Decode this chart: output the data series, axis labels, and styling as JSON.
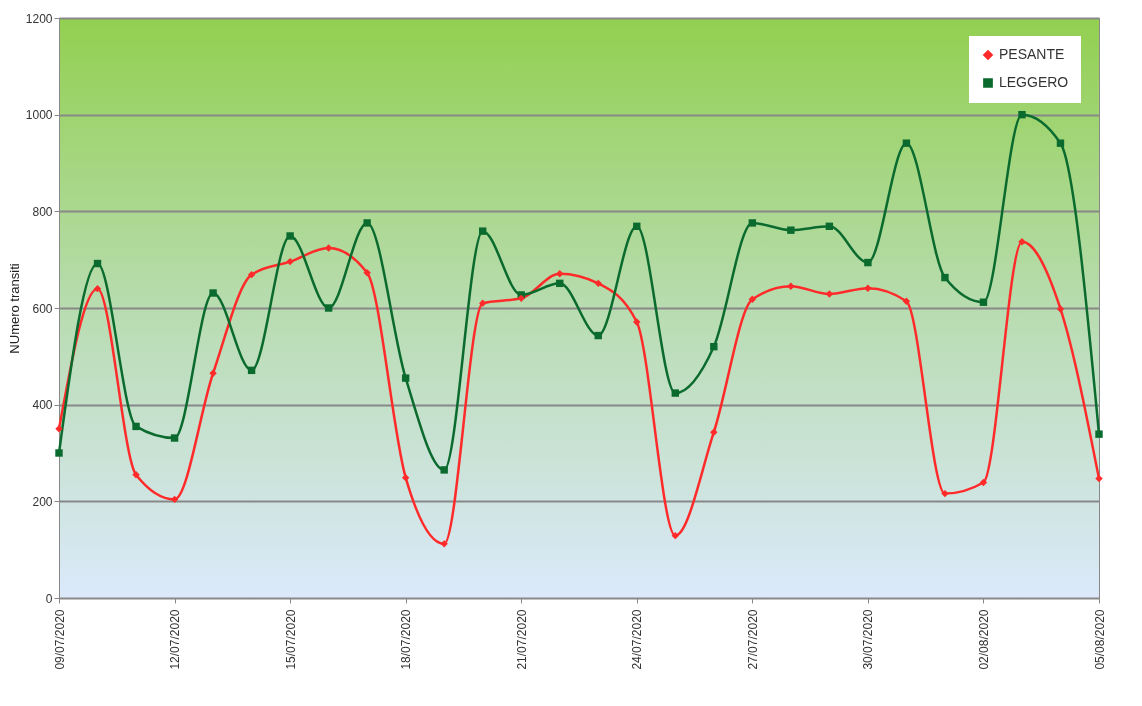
{
  "chart_data": {
    "type": "line",
    "ylabel": "NUmero transiti",
    "x": [
      "2020-07-09",
      "2020-07-10",
      "2020-07-11",
      "2020-07-12",
      "2020-07-13",
      "2020-07-14",
      "2020-07-15",
      "2020-07-16",
      "2020-07-17",
      "2020-07-18",
      "2020-07-19",
      "2020-07-20",
      "2020-07-21",
      "2020-07-22",
      "2020-07-23",
      "2020-07-24",
      "2020-07-25",
      "2020-07-26",
      "2020-07-27",
      "2020-07-28",
      "2020-07-29",
      "2020-07-30",
      "2020-07-31",
      "2020-08-01",
      "2020-08-02",
      "2020-08-03",
      "2020-08-04",
      "2020-08-05"
    ],
    "series": [
      {
        "name": "PESANTE",
        "color": "#ff2a2a",
        "marker": "diamond",
        "values": [
          350,
          640,
          255,
          204,
          465,
          669,
          696,
          724,
          673,
          249,
          112,
          610,
          620,
          671,
          651,
          571,
          129,
          343,
          618,
          645,
          629,
          641,
          614,
          216,
          239,
          737,
          598,
          247
        ]
      },
      {
        "name": "LEGGERO",
        "color": "#0b6b2e",
        "marker": "square",
        "values": [
          300,
          692,
          355,
          331,
          631,
          471,
          749,
          600,
          776,
          455,
          265,
          759,
          627,
          651,
          543,
          769,
          424,
          520,
          776,
          761,
          769,
          694,
          941,
          663,
          612,
          1000,
          941,
          339
        ]
      }
    ],
    "xlim": [
      "2020-07-09",
      "2020-08-05"
    ],
    "xticks": [
      {
        "value": "2020-07-09",
        "label": "09/07/2020"
      },
      {
        "value": "2020-07-12",
        "label": "12/07/2020"
      },
      {
        "value": "2020-07-15",
        "label": "15/07/2020"
      },
      {
        "value": "2020-07-18",
        "label": "18/07/2020"
      },
      {
        "value": "2020-07-21",
        "label": "21/07/2020"
      },
      {
        "value": "2020-07-24",
        "label": "24/07/2020"
      },
      {
        "value": "2020-07-27",
        "label": "27/07/2020"
      },
      {
        "value": "2020-07-30",
        "label": "30/07/2020"
      },
      {
        "value": "2020-08-02",
        "label": "02/08/2020"
      },
      {
        "value": "2020-08-05",
        "label": "05/08/2020"
      }
    ],
    "ylim": [
      0,
      1200
    ],
    "yticks": [
      0,
      200,
      400,
      600,
      800,
      1000,
      1200
    ],
    "grid": "y",
    "legend": "top right",
    "line_style": "solid"
  }
}
